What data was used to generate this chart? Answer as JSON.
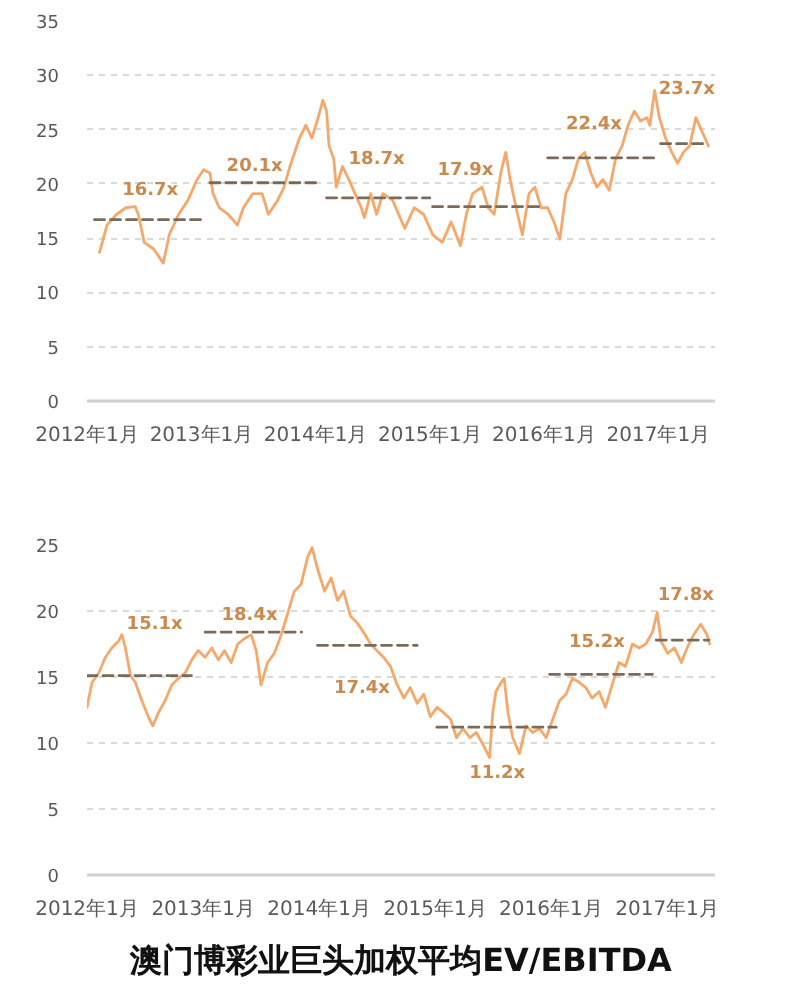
{
  "chart_data": [
    {
      "type": "line",
      "xlim": [
        "2012-01",
        "2017-07"
      ],
      "ylim": [
        0,
        35
      ],
      "xticks": [
        {
          "value": "2012-01",
          "label": "2012年1月"
        },
        {
          "value": "2013-01",
          "label": "2013年1月"
        },
        {
          "value": "2014-01",
          "label": "2014年1月"
        },
        {
          "value": "2015-01",
          "label": "2015年1月"
        },
        {
          "value": "2016-01",
          "label": "2016年1月"
        },
        {
          "value": "2017-01",
          "label": "2017年1月"
        }
      ],
      "yticks": [
        0,
        5,
        10,
        15,
        20,
        25,
        30,
        35
      ],
      "grid": "y",
      "marker": "none",
      "line_style": "solid",
      "series": [
        {
          "color": "#f4a96b",
          "x": [
            "2012-02-10",
            "2012-03-05",
            "2012-04-05",
            "2012-05-04",
            "2012-06-03",
            "2012-06-13",
            "2012-07-02",
            "2012-08-01",
            "2012-09-01",
            "2012-09-20",
            "2012-10-20",
            "2012-11-19",
            "2012-12-18",
            "2013-01-08",
            "2013-01-28",
            "2013-02-07",
            "2013-02-27",
            "2013-03-27",
            "2013-04-26",
            "2013-05-15",
            "2013-06-14",
            "2013-07-14",
            "2013-08-03",
            "2013-09-02",
            "2013-09-22",
            "2013-10-11",
            "2013-11-10",
            "2013-12-01",
            "2013-12-20",
            "2014-01-09",
            "2014-01-24",
            "2014-02-05",
            "2014-02-13",
            "2014-02-28",
            "2014-03-08",
            "2014-03-28",
            "2014-04-17",
            "2014-05-07",
            "2014-05-27",
            "2014-06-06",
            "2014-06-26",
            "2014-07-15",
            "2014-08-04",
            "2014-09-04",
            "2014-10-13",
            "2014-11-12",
            "2014-12-12",
            "2015-01-11",
            "2015-02-10",
            "2015-03-10",
            "2015-04-09",
            "2015-04-28",
            "2015-05-18",
            "2015-06-17",
            "2015-07-07",
            "2015-07-26",
            "2015-08-16",
            "2015-09-01",
            "2015-09-15",
            "2015-10-04",
            "2015-10-24",
            "2015-11-14",
            "2015-12-03",
            "2015-12-23",
            "2016-01-13",
            "2016-02-02",
            "2016-02-21",
            "2016-03-11",
            "2016-04-01",
            "2016-04-20",
            "2016-05-10",
            "2016-05-30",
            "2016-06-18",
            "2016-07-08",
            "2016-07-28",
            "2016-08-17",
            "2016-09-07",
            "2016-09-26",
            "2016-10-16",
            "2016-11-05",
            "2016-11-25",
            "2016-12-05",
            "2016-12-20",
            "2017-01-04",
            "2017-01-24",
            "2017-02-13",
            "2017-03-03",
            "2017-03-22",
            "2017-04-11",
            "2017-05-01",
            "2017-05-21",
            "2017-06-10"
          ],
          "values": [
            13.7,
            16.2,
            17.2,
            17.8,
            17.9,
            17.2,
            14.6,
            14.0,
            12.7,
            15.3,
            17.2,
            18.5,
            20.4,
            21.3,
            21.0,
            19.1,
            17.8,
            17.2,
            16.2,
            17.8,
            19.1,
            19.1,
            17.2,
            18.5,
            19.7,
            21.6,
            24.2,
            25.4,
            24.2,
            26.1,
            27.7,
            26.7,
            23.5,
            22.3,
            19.7,
            21.6,
            20.4,
            19.1,
            17.8,
            16.9,
            19.1,
            17.2,
            19.1,
            18.5,
            15.9,
            17.8,
            17.2,
            15.3,
            14.6,
            16.5,
            14.3,
            17.2,
            19.1,
            19.7,
            17.8,
            17.2,
            21.0,
            22.9,
            20.4,
            17.8,
            15.3,
            19.1,
            19.7,
            17.8,
            17.8,
            16.5,
            14.9,
            19.1,
            20.4,
            22.3,
            22.9,
            21.0,
            19.7,
            20.4,
            19.4,
            22.3,
            23.5,
            25.4,
            26.7,
            25.8,
            26.1,
            25.4,
            28.6,
            26.1,
            24.2,
            22.9,
            21.9,
            22.9,
            23.5,
            26.1,
            24.8,
            23.5
          ]
        },
        {
          "color": "#7a6a5a",
          "line_style": "dashed",
          "x": [
            "2012-01-25",
            "2013-01-15"
          ],
          "values": [
            16.7,
            16.7
          ]
        },
        {
          "color": "#7a6a5a",
          "line_style": "dashed",
          "x": [
            "2013-01-28",
            "2014-01-01"
          ],
          "values": [
            20.1,
            20.1
          ]
        },
        {
          "color": "#7a6a5a",
          "line_style": "dashed",
          "x": [
            "2014-02-05",
            "2015-01-01"
          ],
          "values": [
            18.7,
            18.7
          ]
        },
        {
          "color": "#7a6a5a",
          "line_style": "dashed",
          "x": [
            "2015-01-10",
            "2016-01-01"
          ],
          "values": [
            17.9,
            17.9
          ]
        },
        {
          "color": "#7a6a5a",
          "line_style": "dashed",
          "x": [
            "2016-01-13",
            "2017-01-04"
          ],
          "values": [
            22.4,
            22.4
          ]
        },
        {
          "color": "#7a6a5a",
          "line_style": "dashed",
          "x": [
            "2017-01-08",
            "2017-06-10"
          ],
          "values": [
            23.7,
            23.7
          ]
        }
      ],
      "annotations": [
        {
          "text": "16.7x",
          "x": "2012-07-21",
          "y": 16.7
        },
        {
          "text": "20.1x",
          "x": "2013-06-20",
          "y": 20.1
        },
        {
          "text": "18.7x",
          "x": "2014-07-15",
          "y": 18.7
        },
        {
          "text": "17.9x",
          "x": "2015-04-25",
          "y": 17.9
        },
        {
          "text": "22.4x",
          "x": "2016-06-09",
          "y": 22.4
        },
        {
          "text": "23.7x",
          "x": "2017-04-02",
          "y": 23.7
        }
      ]
    },
    {
      "type": "line",
      "title": "澳门博彩业巨头加权平均EV/EBITDA",
      "xlim": [
        "2012-01",
        "2017-06"
      ],
      "ylim": [
        0,
        25
      ],
      "xticks": [
        {
          "value": "2012-01",
          "label": "2012年1月"
        },
        {
          "value": "2013-01",
          "label": "2013年1月"
        },
        {
          "value": "2014-01",
          "label": "2014年1月"
        },
        {
          "value": "2015-01",
          "label": "2015年1月"
        },
        {
          "value": "2016-01",
          "label": "2016年1月"
        },
        {
          "value": "2017-01",
          "label": "2017年1月"
        }
      ],
      "yticks": [
        0,
        5,
        10,
        15,
        20,
        25
      ],
      "grid": "y",
      "marker": "none",
      "line_style": "solid",
      "series": [
        {
          "color": "#f4a96b",
          "x": [
            "2012-01-01",
            "2012-01-17",
            "2012-02-07",
            "2012-02-28",
            "2012-03-19",
            "2012-04-09",
            "2012-04-20",
            "2012-05-01",
            "2012-05-17",
            "2012-06-01",
            "2012-06-22",
            "2012-07-12",
            "2012-07-26",
            "2012-08-13",
            "2012-09-03",
            "2012-09-24",
            "2012-10-15",
            "2012-11-05",
            "2012-11-26",
            "2012-12-16",
            "2013-01-07",
            "2013-01-28",
            "2013-02-18",
            "2013-03-09",
            "2013-03-30",
            "2013-04-20",
            "2013-05-10",
            "2013-06-01",
            "2013-06-17",
            "2013-07-02",
            "2013-07-23",
            "2013-08-13",
            "2013-09-04",
            "2013-09-25",
            "2013-10-15",
            "2013-11-05",
            "2013-11-26",
            "2013-12-10",
            "2013-12-27",
            "2014-01-18",
            "2014-02-08",
            "2014-02-28",
            "2014-03-19",
            "2014-04-10",
            "2014-05-01",
            "2014-05-21",
            "2014-06-12",
            "2014-07-02",
            "2014-07-23",
            "2014-08-14",
            "2014-09-04",
            "2014-09-25",
            "2014-10-15",
            "2014-11-06",
            "2014-11-27",
            "2014-12-17",
            "2015-01-08",
            "2015-01-28",
            "2015-02-19",
            "2015-03-10",
            "2015-03-30",
            "2015-04-21",
            "2015-05-11",
            "2015-06-01",
            "2015-06-22",
            "2015-07-02",
            "2015-07-12",
            "2015-07-29",
            "2015-08-07",
            "2015-08-19",
            "2015-09-03",
            "2015-09-24",
            "2015-10-15",
            "2015-11-05",
            "2015-11-26",
            "2015-12-17",
            "2016-01-07",
            "2016-01-28",
            "2016-02-18",
            "2016-03-09",
            "2016-03-30",
            "2016-04-20",
            "2016-05-10",
            "2016-06-01",
            "2016-06-21",
            "2016-07-12",
            "2016-08-03",
            "2016-08-23",
            "2016-09-14",
            "2016-10-05",
            "2016-10-26",
            "2016-11-16",
            "2016-12-01",
            "2016-12-13",
            "2017-01-03",
            "2017-01-24",
            "2017-02-15",
            "2017-03-05",
            "2017-03-26",
            "2017-04-17",
            "2017-05-07",
            "2017-05-15"
          ],
          "values": [
            12.7,
            14.6,
            15.3,
            16.5,
            17.2,
            17.7,
            18.2,
            17.2,
            15.1,
            14.6,
            13.2,
            12.0,
            11.3,
            12.3,
            13.2,
            14.4,
            14.9,
            15.3,
            16.3,
            17.0,
            16.5,
            17.2,
            16.3,
            17.0,
            16.1,
            17.5,
            17.9,
            18.2,
            17.0,
            14.4,
            16.1,
            16.8,
            18.2,
            19.9,
            21.5,
            22.0,
            24.1,
            24.8,
            23.2,
            21.5,
            22.5,
            20.8,
            21.5,
            19.6,
            19.1,
            18.4,
            17.5,
            17.0,
            16.5,
            15.8,
            14.4,
            13.4,
            14.2,
            13.0,
            13.7,
            12.0,
            12.7,
            12.3,
            11.8,
            10.4,
            11.1,
            10.4,
            10.8,
            9.9,
            8.9,
            12.3,
            13.9,
            14.6,
            14.9,
            12.3,
            10.4,
            9.2,
            11.3,
            10.8,
            11.1,
            10.4,
            11.8,
            13.2,
            13.7,
            14.9,
            14.6,
            14.2,
            13.4,
            13.9,
            12.7,
            14.4,
            16.1,
            15.8,
            17.5,
            17.2,
            17.5,
            18.4,
            19.9,
            17.7,
            16.8,
            17.2,
            16.1,
            17.2,
            18.2,
            19.0,
            18.2,
            17.5
          ]
        },
        {
          "color": "#7a6a5a",
          "line_style": "dashed",
          "x": [
            "2012-01-01",
            "2012-11-25"
          ],
          "values": [
            15.1,
            15.1
          ]
        },
        {
          "color": "#7a6a5a",
          "line_style": "dashed",
          "x": [
            "2013-01-07",
            "2013-11-07"
          ],
          "values": [
            18.4,
            18.4
          ]
        },
        {
          "color": "#7a6a5a",
          "line_style": "dashed",
          "x": [
            "2013-12-27",
            "2014-11-06"
          ],
          "values": [
            17.4,
            17.4
          ]
        },
        {
          "color": "#7a6a5a",
          "line_style": "dashed",
          "x": [
            "2015-01-07",
            "2016-01-18"
          ],
          "values": [
            11.2,
            11.2
          ]
        },
        {
          "color": "#7a6a5a",
          "line_style": "dashed",
          "x": [
            "2015-12-28",
            "2016-11-16"
          ],
          "values": [
            15.2,
            15.2
          ]
        },
        {
          "color": "#7a6a5a",
          "line_style": "dashed",
          "x": [
            "2016-11-28",
            "2017-05-13"
          ],
          "values": [
            17.8,
            17.8
          ]
        }
      ],
      "annotations": [
        {
          "text": "15.1x",
          "x": "2012-08-01",
          "y": 15.1
        },
        {
          "text": "18.4x",
          "x": "2013-05-27",
          "y": 18.4
        },
        {
          "text": "17.4x",
          "x": "2014-05-16",
          "y": 17.4
        },
        {
          "text": "11.2x",
          "x": "2015-07-16",
          "y": 11.2
        },
        {
          "text": "15.2x",
          "x": "2016-05-25",
          "y": 15.2
        },
        {
          "text": "17.8x",
          "x": "2017-03-01",
          "y": 17.8
        }
      ]
    }
  ]
}
